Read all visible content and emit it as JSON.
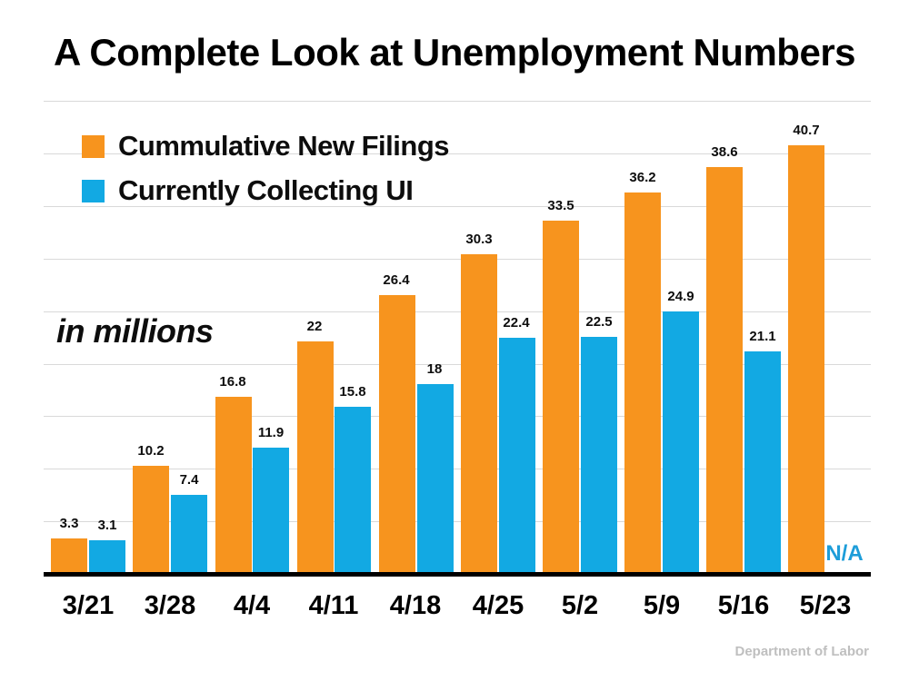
{
  "title": "A Complete Look at Unemployment Numbers",
  "annotations": {
    "units_note": "in millions",
    "na_label": "N/A",
    "source": "Department of Labor"
  },
  "colors": {
    "orange": "#F7941E",
    "blue": "#12A9E3",
    "na_text": "#1D9DD9",
    "grid": "#D9D9D9",
    "axis": "#000000",
    "source_text": "#BFBFBF"
  },
  "legend": [
    {
      "label": "Cummulative New Filings",
      "color": "#F7941E"
    },
    {
      "label": "Currently Collecting UI",
      "color": "#12A9E3"
    }
  ],
  "chart_data": {
    "type": "bar",
    "title": "A Complete Look at Unemployment Numbers",
    "units": "millions",
    "categories": [
      "3/21",
      "3/28",
      "4/4",
      "4/11",
      "4/18",
      "4/25",
      "5/2",
      "5/9",
      "5/16",
      "5/23"
    ],
    "series": [
      {
        "name": "Cummulative New Filings",
        "color": "#F7941E",
        "values": [
          3.3,
          10.2,
          16.8,
          22,
          26.4,
          30.3,
          33.5,
          36.2,
          38.6,
          40.7
        ],
        "labels": [
          "3.3",
          "10.2",
          "16.8",
          "22",
          "26.4",
          "30.3",
          "33.5",
          "36.2",
          "38.6",
          "40.7"
        ]
      },
      {
        "name": "Currently Collecting UI",
        "color": "#12A9E3",
        "values": [
          3.1,
          7.4,
          11.9,
          15.8,
          18,
          22.4,
          22.5,
          24.9,
          21.1,
          null
        ],
        "labels": [
          "3.1",
          "7.4",
          "11.9",
          "15.8",
          "18",
          "22.4",
          "22.5",
          "24.9",
          "21.1",
          "N/A"
        ]
      }
    ],
    "ylim": [
      0,
      45
    ],
    "grid_step": 5,
    "grid": "horizontal",
    "y_axis_labels_visible": false,
    "legend_position": "top-left"
  }
}
